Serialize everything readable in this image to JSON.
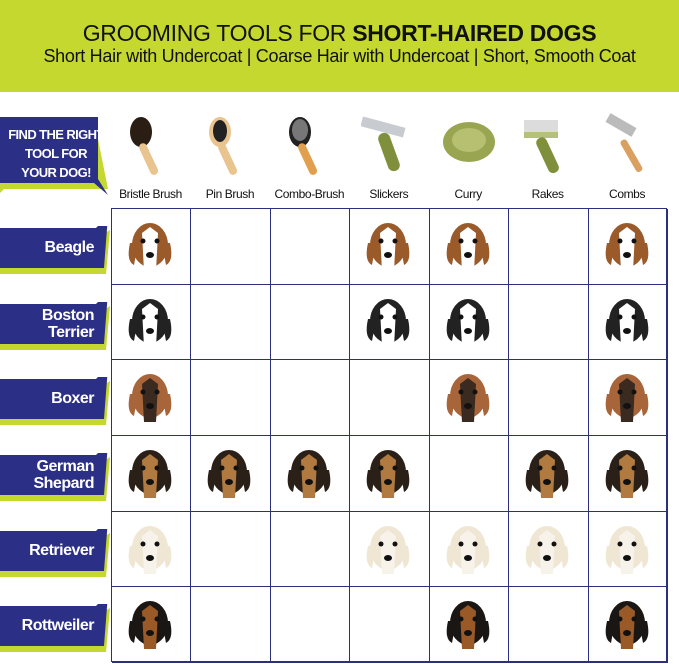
{
  "header": {
    "title_regular": "GROOMING TOOLS FOR ",
    "title_bold": "SHORT-HAIRED DOGS",
    "subtitle": "Short Hair with Undercoat | Coarse Hair with Undercoat | Short, Smooth Coat"
  },
  "callout": "FIND THE RIGHT TOOL FOR YOUR DOG!",
  "tools": [
    {
      "label": "Bristle Brush",
      "icon": "bristle-brush-icon"
    },
    {
      "label": "Pin Brush",
      "icon": "pin-brush-icon"
    },
    {
      "label": "Combo-Brush",
      "icon": "combo-brush-icon"
    },
    {
      "label": "Slickers",
      "icon": "slicker-icon"
    },
    {
      "label": "Curry",
      "icon": "curry-icon"
    },
    {
      "label": "Rakes",
      "icon": "rake-icon"
    },
    {
      "label": "Combs",
      "icon": "comb-icon"
    }
  ],
  "dogs": [
    {
      "name": "Beagle",
      "tools": [
        1,
        0,
        0,
        1,
        1,
        0,
        1
      ],
      "colors": [
        "#9a5a2a",
        "#ffffff"
      ]
    },
    {
      "name": "Boston Terrier",
      "tools": [
        1,
        0,
        0,
        1,
        1,
        0,
        1
      ],
      "colors": [
        "#222222",
        "#ffffff"
      ]
    },
    {
      "name": "Boxer",
      "tools": [
        1,
        0,
        0,
        0,
        1,
        0,
        1
      ],
      "colors": [
        "#a8653a",
        "#3a2a20"
      ]
    },
    {
      "name": "German Shepard",
      "tools": [
        1,
        1,
        1,
        1,
        0,
        1,
        1
      ],
      "colors": [
        "#2a2018",
        "#b07a40"
      ]
    },
    {
      "name": "Retriever",
      "tools": [
        1,
        0,
        0,
        1,
        1,
        1,
        1
      ],
      "colors": [
        "#efe6d4",
        "#f7f2ea"
      ]
    },
    {
      "name": "Rottweiler",
      "tools": [
        1,
        0,
        0,
        0,
        1,
        0,
        1
      ],
      "colors": [
        "#1a1614",
        "#9a5a28"
      ]
    }
  ],
  "colors": {
    "header_bg": "#c5d82f",
    "banner": "#2b2f86",
    "shadow": "#c5d82f",
    "grid": "#2b2f7c"
  }
}
